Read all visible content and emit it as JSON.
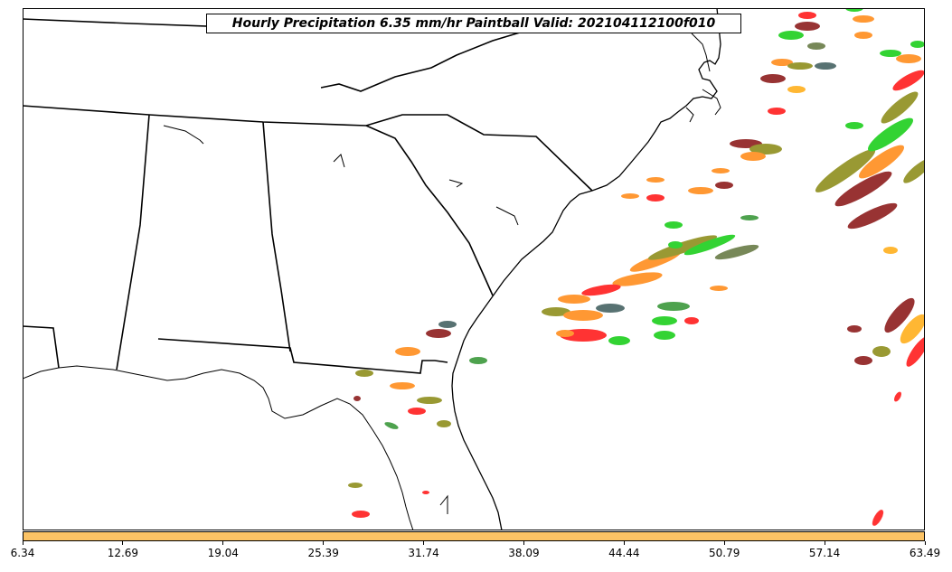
{
  "title": "Hourly Precipitation 6.35 mm/hr Paintball Valid: 202104112100f010",
  "colorbar": {
    "color": "#fcc365",
    "min": 6.34,
    "max": 63.49,
    "tick_labels": [
      "6.34",
      "12.69",
      "19.04",
      "25.39",
      "31.74",
      "38.09",
      "44.44",
      "50.79",
      "57.14",
      "63.49"
    ]
  },
  "map": {
    "region": "Southeastern United States",
    "projection": "lambert-conformal",
    "features": [
      "state-borders",
      "coastlines",
      "lakes"
    ],
    "land_color": "#ffffff",
    "ocean_color": "#ffffff",
    "line_color": "#000000"
  },
  "legend_colors": [
    "#ff0000",
    "#ff7f00",
    "#808000",
    "#00c800",
    "#7f0000",
    "#228b22",
    "#2f4f4f",
    "#ffa500"
  ]
}
